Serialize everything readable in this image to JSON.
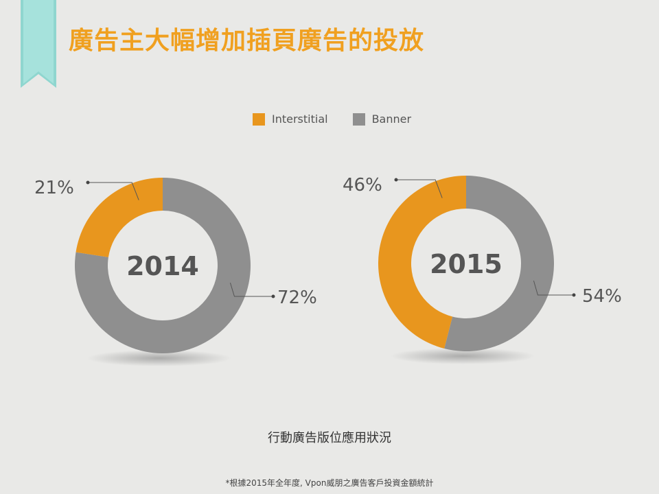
{
  "title": "廣告主大幅增加插頁廣告的投放",
  "legend": [
    {
      "label": "Interstitial",
      "color": "#e8961e"
    },
    {
      "label": "Banner",
      "color": "#8f8f8f"
    }
  ],
  "chart_data": {
    "type": "pie",
    "donut": true,
    "charts": [
      {
        "center_label": "2014",
        "slices": [
          {
            "series": "Interstitial",
            "value": 21,
            "label": "21%"
          },
          {
            "series": "Banner",
            "value": 72,
            "label": "72%"
          }
        ]
      },
      {
        "center_label": "2015",
        "slices": [
          {
            "series": "Interstitial",
            "value": 46,
            "label": "46%"
          },
          {
            "series": "Banner",
            "value": 54,
            "label": "54%"
          }
        ]
      }
    ]
  },
  "subtitle": "行動廣告版位應用狀況",
  "footnote": "*根據2015年全年度, Vpon威朋之廣告客戶投資金額統計"
}
